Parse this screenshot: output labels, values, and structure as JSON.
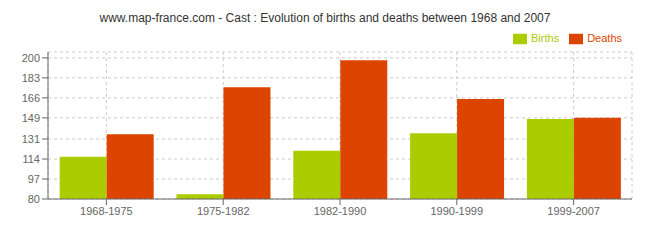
{
  "chart_data": {
    "type": "bar",
    "title": "www.map-france.com - Cast : Evolution of births and deaths between 1968 and 2007",
    "categories": [
      "1968-1975",
      "1975-1982",
      "1982-1990",
      "1990-1999",
      "1999-2007"
    ],
    "series": [
      {
        "name": "Births",
        "color": "#aacc00",
        "values": [
          116,
          84,
          121,
          136,
          148
        ]
      },
      {
        "name": "Deaths",
        "color": "#dd4400",
        "values": [
          135,
          175,
          198,
          165,
          149
        ]
      }
    ],
    "ylim": [
      80,
      205
    ],
    "yticks": [
      80,
      97,
      114,
      131,
      149,
      166,
      183,
      200
    ],
    "grid": true,
    "legend": "upper right"
  }
}
